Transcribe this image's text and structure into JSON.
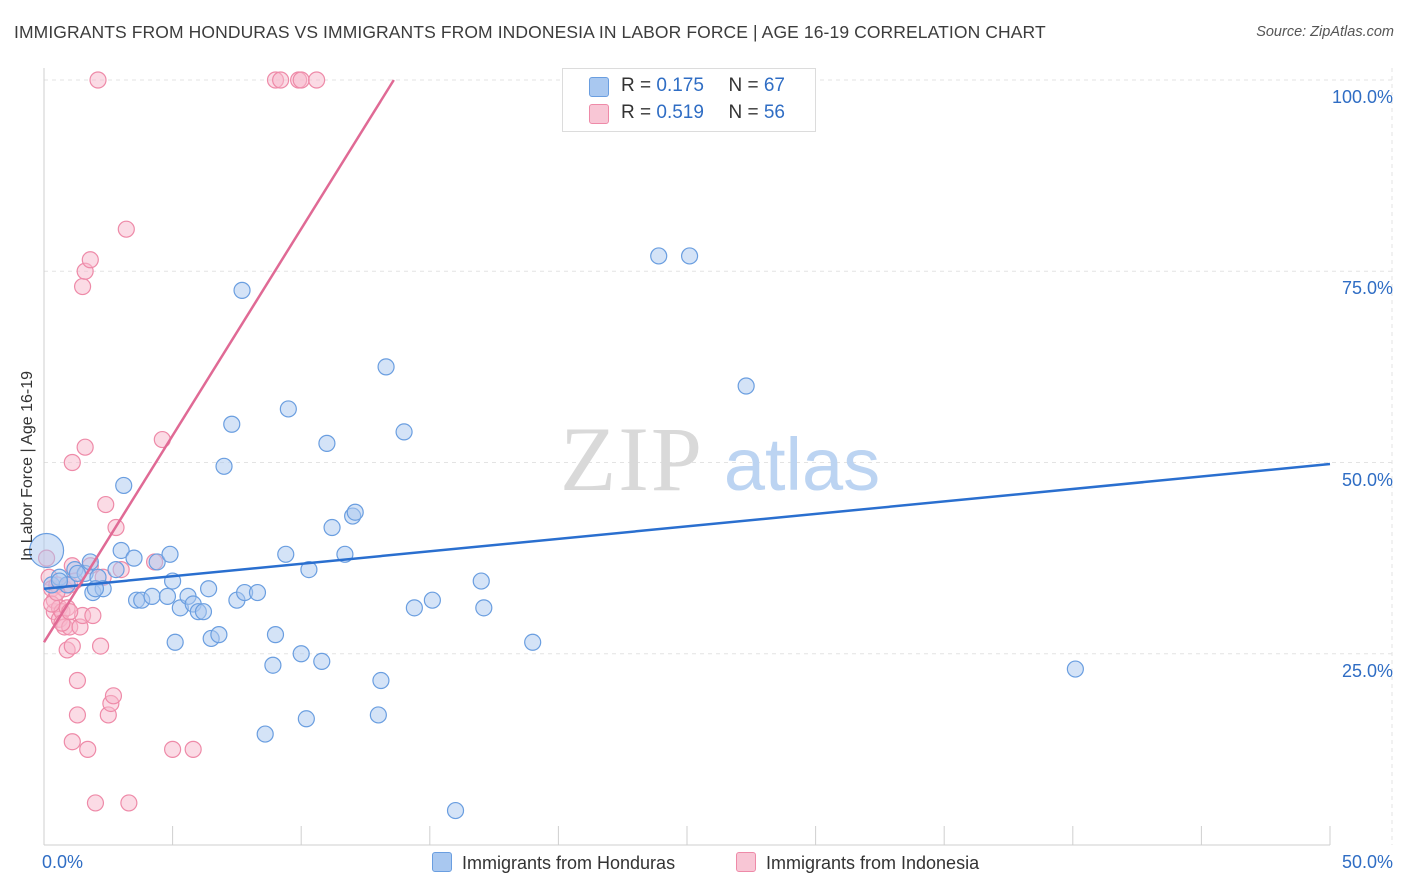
{
  "title": "IMMIGRANTS FROM HONDURAS VS IMMIGRANTS FROM INDONESIA IN LABOR FORCE | AGE 16-19 CORRELATION CHART",
  "source": "Source: ZipAtlas.com",
  "watermark": {
    "zip": "ZIP",
    "atlas": "atlas"
  },
  "legend": {
    "rows": [
      {
        "r_label": "R = ",
        "r_value": "0.175",
        "n_label": "N = ",
        "n_value": "67"
      },
      {
        "r_label": "R = ",
        "r_value": "0.519",
        "n_label": "N = ",
        "n_value": "56"
      }
    ]
  },
  "bottom_legend": {
    "honduras": "Immigrants from Honduras",
    "indonesia": "Immigrants from Indonesia"
  },
  "colors": {
    "honduras_fill": "#a9c8f0",
    "honduras_stroke": "#6a9ee0",
    "honduras_line": "#2a6fcf",
    "indonesia_fill": "#f8b8cb",
    "indonesia_stroke": "#ee8aa8",
    "indonesia_line": "#e06a95",
    "tick_text": "#2f6dc4",
    "grid": "#e3e3e3"
  },
  "chart_data": {
    "type": "scatter",
    "title": "IMMIGRANTS FROM HONDURAS VS IMMIGRANTS FROM INDONESIA IN LABOR FORCE | AGE 16-19 CORRELATION CHART",
    "xlabel": "",
    "ylabel": "In Labor Force | Age 16-19",
    "xlim": [
      0,
      50
    ],
    "ylim": [
      0,
      100
    ],
    "x_tick_labels": [
      {
        "value": 0,
        "label": "0.0%"
      },
      {
        "value": 50,
        "label": "50.0%"
      }
    ],
    "y_tick_labels": [
      {
        "value": 25,
        "label": "25.0%"
      },
      {
        "value": 50,
        "label": "50.0%"
      },
      {
        "value": 75,
        "label": "75.0%"
      },
      {
        "value": 100,
        "label": "100.0%"
      }
    ],
    "series": [
      {
        "name": "Immigrants from Honduras",
        "R": 0.175,
        "N": 67,
        "trend": {
          "x": [
            0,
            50
          ],
          "y": [
            33.5,
            49.8
          ]
        },
        "points": [
          [
            0.1,
            38.5,
            "big"
          ],
          [
            0.3,
            34
          ],
          [
            0.6,
            35
          ],
          [
            0.9,
            34
          ],
          [
            1.2,
            36
          ],
          [
            1.6,
            35.5
          ],
          [
            1.8,
            37
          ],
          [
            1.9,
            33
          ],
          [
            2.1,
            35
          ],
          [
            2.3,
            33.5
          ],
          [
            2.8,
            36
          ],
          [
            3.0,
            38.5
          ],
          [
            3.1,
            47
          ],
          [
            3.5,
            37.5
          ],
          [
            3.6,
            32
          ],
          [
            3.8,
            32
          ],
          [
            4.2,
            32.5
          ],
          [
            4.4,
            37
          ],
          [
            4.8,
            32.5
          ],
          [
            4.9,
            38
          ],
          [
            5.0,
            34.5
          ],
          [
            5.1,
            26.5
          ],
          [
            5.3,
            31
          ],
          [
            5.6,
            32.5
          ],
          [
            5.8,
            31.5
          ],
          [
            6.0,
            30.5
          ],
          [
            6.2,
            30.5
          ],
          [
            6.4,
            33.5
          ],
          [
            6.5,
            27
          ],
          [
            6.8,
            27.5
          ],
          [
            7.0,
            49.5
          ],
          [
            7.3,
            55
          ],
          [
            7.5,
            32
          ],
          [
            7.7,
            72.5
          ],
          [
            7.8,
            33
          ],
          [
            8.3,
            33
          ],
          [
            8.6,
            14.5
          ],
          [
            8.9,
            23.5
          ],
          [
            9.0,
            27.5
          ],
          [
            9.4,
            38
          ],
          [
            9.5,
            57
          ],
          [
            10.0,
            25
          ],
          [
            10.2,
            16.5
          ],
          [
            10.3,
            36
          ],
          [
            10.8,
            24
          ],
          [
            11.0,
            52.5
          ],
          [
            11.2,
            41.5
          ],
          [
            11.7,
            38
          ],
          [
            12.0,
            43
          ],
          [
            12.1,
            43.5
          ],
          [
            13.0,
            17
          ],
          [
            13.1,
            21.5
          ],
          [
            13.3,
            62.5
          ],
          [
            14.0,
            54
          ],
          [
            14.4,
            31
          ],
          [
            15.1,
            32
          ],
          [
            16.0,
            4.5
          ],
          [
            17.0,
            34.5
          ],
          [
            17.1,
            31
          ],
          [
            19.0,
            26.5
          ],
          [
            23.9,
            77
          ],
          [
            25.1,
            77
          ],
          [
            27.3,
            60
          ],
          [
            40.1,
            23
          ],
          [
            0.6,
            34.5
          ],
          [
            2.0,
            33.5
          ],
          [
            1.3,
            35.5
          ]
        ]
      },
      {
        "name": "Immigrants from Indonesia",
        "R": 0.519,
        "N": 56,
        "trend": {
          "x": [
            0,
            13.6
          ],
          "y": [
            26.5,
            100
          ]
        },
        "points": [
          [
            0.1,
            37.5
          ],
          [
            0.2,
            35
          ],
          [
            0.3,
            33.5
          ],
          [
            0.4,
            30.5
          ],
          [
            0.4,
            32
          ],
          [
            0.5,
            34
          ],
          [
            0.6,
            31
          ],
          [
            0.6,
            29.5
          ],
          [
            0.7,
            30.5
          ],
          [
            0.8,
            28.5
          ],
          [
            0.8,
            33.5
          ],
          [
            0.9,
            31
          ],
          [
            0.9,
            25.5
          ],
          [
            1.0,
            34
          ],
          [
            1.0,
            28.5
          ],
          [
            1.1,
            26
          ],
          [
            1.1,
            36.5
          ],
          [
            1.1,
            50
          ],
          [
            1.1,
            13.5
          ],
          [
            1.2,
            34.5
          ],
          [
            1.3,
            21.5
          ],
          [
            1.3,
            17
          ],
          [
            1.4,
            28.5
          ],
          [
            1.5,
            30
          ],
          [
            1.5,
            73
          ],
          [
            1.6,
            75
          ],
          [
            1.6,
            52
          ],
          [
            1.7,
            12.5
          ],
          [
            1.8,
            76.5
          ],
          [
            1.8,
            36.5
          ],
          [
            1.9,
            30
          ],
          [
            2.0,
            5.5
          ],
          [
            2.1,
            100
          ],
          [
            2.2,
            26
          ],
          [
            2.3,
            35
          ],
          [
            2.4,
            44.5
          ],
          [
            2.5,
            17
          ],
          [
            2.6,
            18.5
          ],
          [
            2.7,
            19.5
          ],
          [
            2.8,
            41.5
          ],
          [
            3.0,
            36
          ],
          [
            3.2,
            80.5
          ],
          [
            3.3,
            5.5
          ],
          [
            4.3,
            37
          ],
          [
            4.6,
            53
          ],
          [
            5.0,
            12.5
          ],
          [
            5.8,
            12.5
          ],
          [
            9.0,
            100
          ],
          [
            9.2,
            100
          ],
          [
            9.9,
            100
          ],
          [
            10.0,
            100
          ],
          [
            10.6,
            100
          ],
          [
            0.3,
            31.5
          ],
          [
            0.5,
            33
          ],
          [
            0.7,
            29
          ],
          [
            1.0,
            30.5
          ]
        ]
      }
    ]
  }
}
